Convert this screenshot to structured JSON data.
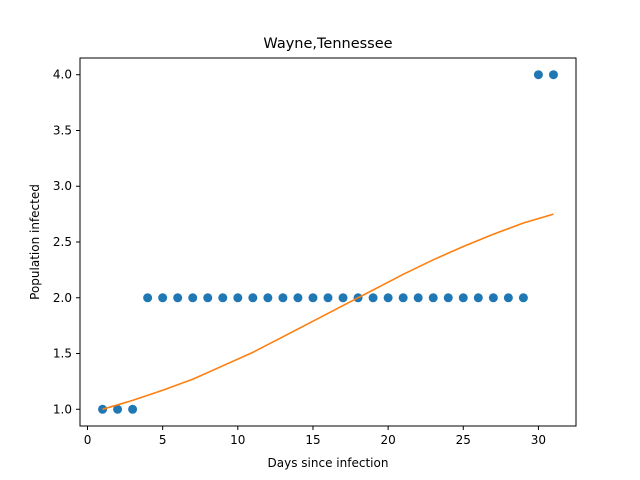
{
  "chart_data": {
    "type": "scatter",
    "title": "Wayne,Tennessee",
    "xlabel": "Days since infection",
    "ylabel": "Population infected",
    "xlim": [
      -0.5,
      32.5
    ],
    "ylim": [
      0.85,
      4.15
    ],
    "xticks": [
      0,
      5,
      10,
      15,
      20,
      25,
      30
    ],
    "xtick_labels": [
      "0",
      "5",
      "10",
      "15",
      "20",
      "25",
      "30"
    ],
    "yticks": [
      1.0,
      1.5,
      2.0,
      2.5,
      3.0,
      3.5,
      4.0
    ],
    "ytick_labels": [
      "1.0",
      "1.5",
      "2.0",
      "2.5",
      "3.0",
      "3.5",
      "4.0"
    ],
    "grid": false,
    "series": [
      {
        "type": "scatter",
        "color": "#1f77b4",
        "x": [
          1,
          2,
          3,
          4,
          5,
          6,
          7,
          8,
          9,
          10,
          11,
          12,
          13,
          14,
          15,
          16,
          17,
          18,
          19,
          20,
          21,
          22,
          23,
          24,
          25,
          26,
          27,
          28,
          29,
          30,
          31
        ],
        "y": [
          1,
          1,
          1,
          2,
          2,
          2,
          2,
          2,
          2,
          2,
          2,
          2,
          2,
          2,
          2,
          2,
          2,
          2,
          2,
          2,
          2,
          2,
          2,
          2,
          2,
          2,
          2,
          2,
          2,
          4,
          4
        ]
      },
      {
        "type": "line",
        "color": "#ff7f0e",
        "x": [
          1,
          3,
          5,
          7,
          9,
          11,
          13,
          15,
          17,
          19,
          21,
          23,
          25,
          27,
          29,
          31
        ],
        "y": [
          1.0,
          1.08,
          1.17,
          1.27,
          1.39,
          1.51,
          1.65,
          1.79,
          1.93,
          2.07,
          2.21,
          2.34,
          2.46,
          2.57,
          2.67,
          2.75
        ]
      }
    ]
  }
}
